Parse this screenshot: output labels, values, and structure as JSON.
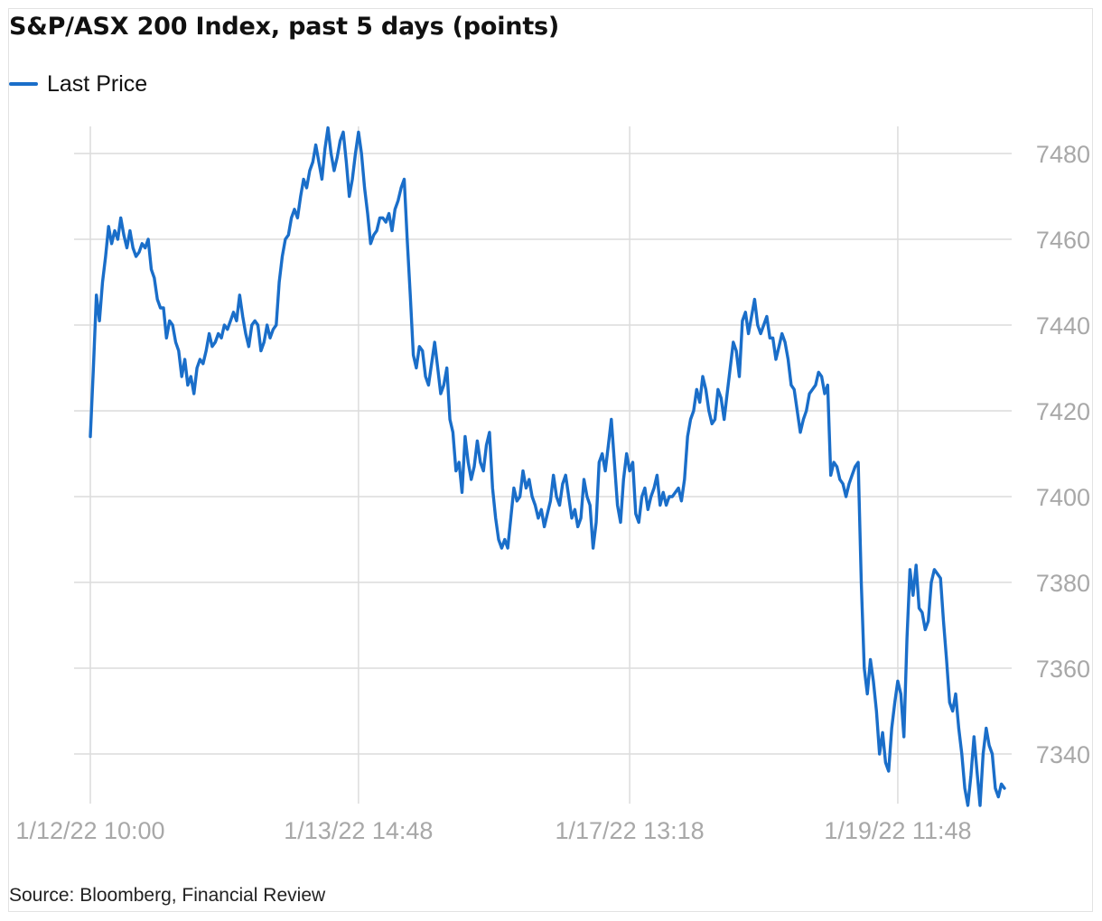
{
  "chart_data": {
    "type": "line",
    "title": "S&P/ASX 200 Index, past 5 days (points)",
    "source": "Source: Bloomberg, Financial Review",
    "legend_position": "top-left",
    "grid": true,
    "y_axis_side": "right",
    "x_ticks": [
      "1/12/22 10:00",
      "1/13/22 14:48",
      "1/17/22 13:18",
      "1/19/22 11:48"
    ],
    "y_ticks": [
      7340,
      7360,
      7380,
      7400,
      7420,
      7440,
      7460,
      7480
    ],
    "ylim": [
      7327,
      7490
    ],
    "series": [
      {
        "name": "Last Price",
        "color": "#1a6ec9",
        "values": [
          7414,
          7430,
          7447,
          7441,
          7450,
          7456,
          7463,
          7459,
          7462,
          7460,
          7465,
          7461,
          7458,
          7462,
          7458,
          7456,
          7457,
          7459,
          7458,
          7460,
          7453,
          7451,
          7446,
          7444,
          7444,
          7437,
          7441,
          7440,
          7436,
          7434,
          7428,
          7432,
          7426,
          7428,
          7424,
          7430,
          7432,
          7431,
          7434,
          7438,
          7435,
          7436,
          7438,
          7437,
          7440,
          7439,
          7441,
          7443,
          7441,
          7447,
          7442,
          7438,
          7435,
          7440,
          7441,
          7440,
          7434,
          7436,
          7440,
          7437,
          7439,
          7440,
          7450,
          7456,
          7460,
          7461,
          7465,
          7467,
          7465,
          7470,
          7474,
          7472,
          7476,
          7478,
          7482,
          7478,
          7474,
          7481,
          7486,
          7480,
          7476,
          7479,
          7483,
          7485,
          7478,
          7470,
          7474,
          7480,
          7485,
          7480,
          7472,
          7466,
          7459,
          7461,
          7462,
          7465,
          7465,
          7464,
          7466,
          7462,
          7467,
          7469,
          7472,
          7474,
          7460,
          7447,
          7433,
          7430,
          7435,
          7434,
          7428,
          7426,
          7431,
          7436,
          7430,
          7424,
          7426,
          7430,
          7418,
          7415,
          7406,
          7408,
          7401,
          7414,
          7408,
          7404,
          7407,
          7413,
          7408,
          7406,
          7412,
          7415,
          7402,
          7395,
          7390,
          7388,
          7390,
          7388,
          7395,
          7402,
          7399,
          7400,
          7406,
          7402,
          7404,
          7400,
          7398,
          7395,
          7397,
          7393,
          7396,
          7399,
          7405,
          7400,
          7398,
          7403,
          7405,
          7400,
          7395,
          7397,
          7393,
          7395,
          7404,
          7400,
          7398,
          7388,
          7394,
          7408,
          7410,
          7406,
          7412,
          7418,
          7408,
          7398,
          7394,
          7404,
          7410,
          7406,
          7408,
          7396,
          7394,
          7400,
          7402,
          7397,
          7400,
          7402,
          7405,
          7398,
          7401,
          7398,
          7400,
          7400,
          7401,
          7402,
          7399,
          7404,
          7414,
          7418,
          7420,
          7425,
          7422,
          7428,
          7425,
          7420,
          7417,
          7418,
          7425,
          7423,
          7418,
          7424,
          7430,
          7436,
          7434,
          7428,
          7441,
          7443,
          7438,
          7442,
          7446,
          7440,
          7438,
          7440,
          7442,
          7437,
          7437,
          7432,
          7435,
          7438,
          7436,
          7432,
          7426,
          7425,
          7420,
          7415,
          7418,
          7420,
          7424,
          7425,
          7426,
          7429,
          7428,
          7424,
          7426,
          7405,
          7408,
          7407,
          7404,
          7403,
          7400,
          7403,
          7405,
          7407,
          7408,
          7380,
          7360,
          7354,
          7362,
          7357,
          7350,
          7340,
          7345,
          7338,
          7336,
          7346,
          7352,
          7357,
          7354,
          7344,
          7367,
          7383,
          7377,
          7384,
          7374,
          7373,
          7369,
          7371,
          7380,
          7383,
          7382,
          7381,
          7371,
          7362,
          7352,
          7350,
          7354,
          7346,
          7340,
          7332,
          7328,
          7335,
          7344,
          7336,
          7328,
          7340,
          7346,
          7342,
          7340,
          7332,
          7330,
          7333,
          7332
        ]
      }
    ]
  }
}
